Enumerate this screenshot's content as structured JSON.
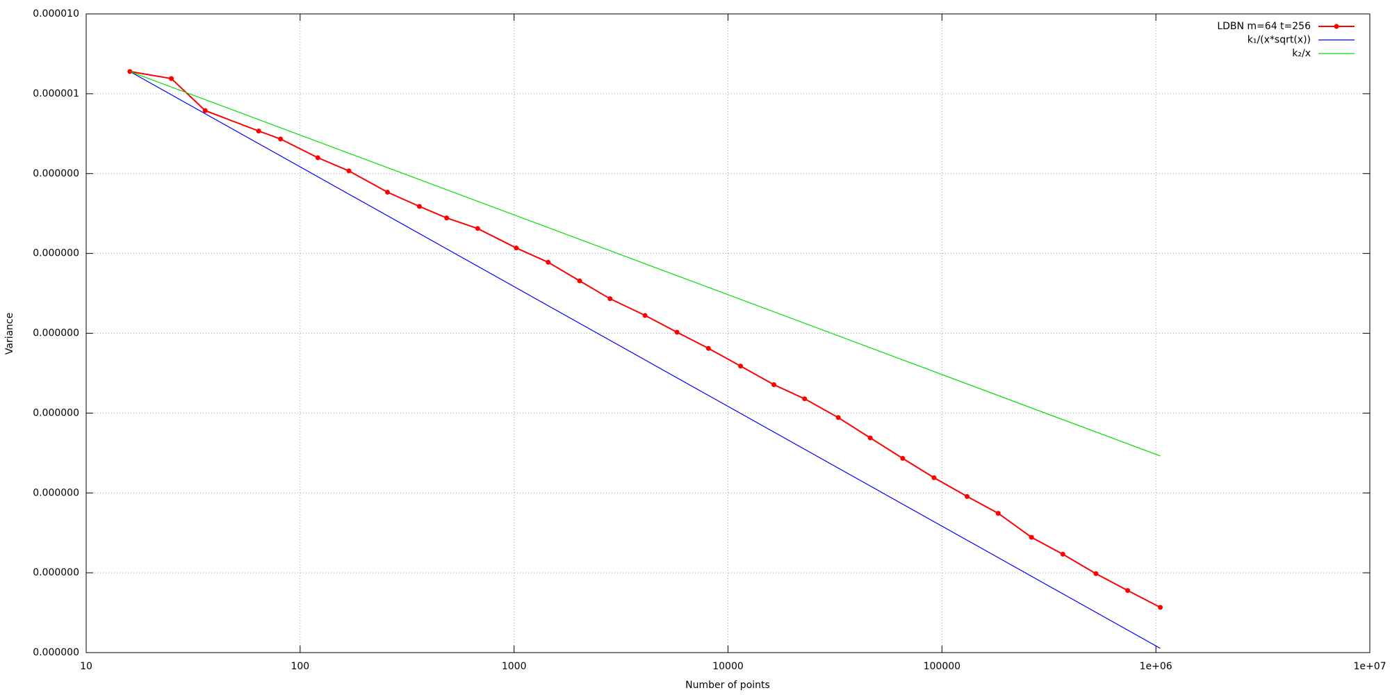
{
  "chart_data": {
    "type": "line",
    "xlabel": "Number of points",
    "ylabel": "Variance",
    "xscale": "log",
    "yscale": "log",
    "grid": true,
    "legend": "upper right",
    "xlim": [
      10,
      10000000
    ],
    "xticks": [
      10,
      100,
      1000,
      10000,
      100000,
      {
        "value": 1000000,
        "label": "1e+06"
      },
      {
        "value": 10000000,
        "label": "1e+07"
      }
    ],
    "ylim": [
      1e-13,
      1e-05
    ],
    "yticks": [
      {
        "value": 1e-05,
        "label": "0.000010"
      },
      {
        "value": 1e-06,
        "label": "0.000001"
      },
      {
        "value": 1e-07,
        "label": "0.000000"
      },
      {
        "value": 1e-08,
        "label": "0.000000"
      },
      {
        "value": 1e-09,
        "label": "0.000000"
      },
      {
        "value": 1e-10,
        "label": "0.000000"
      },
      {
        "value": 1e-11,
        "label": "0.000000"
      },
      {
        "value": 1e-12,
        "label": "0.000000"
      },
      {
        "value": 1e-13,
        "label": "0.000000"
      }
    ],
    "series": [
      {
        "name": "LDBN m=64 t=256",
        "color": "#ff0000",
        "markers": true,
        "x": [
          16,
          25,
          36,
          64,
          81,
          121,
          169,
          256,
          361,
          484,
          676,
          1024,
          1444,
          2025,
          2809,
          4096,
          5776,
          8100,
          11449,
          16384,
          22801,
          32761,
          46225,
          65536,
          91809,
          131044,
          183184,
          262144,
          367236,
          524176,
          737881,
          1048576
        ],
        "values": [
          1.9e-06,
          1.55e-06,
          6.15e-07,
          3.41e-07,
          2.71e-07,
          1.58e-07,
          1.08e-07,
          5.85e-08,
          3.88e-08,
          2.78e-08,
          2.05e-08,
          1.17e-08,
          7.74e-09,
          4.53e-09,
          2.71e-09,
          1.67e-09,
          1.03e-09,
          6.47e-10,
          3.88e-10,
          2.27e-10,
          1.51e-10,
          8.8e-11,
          4.89e-11,
          2.71e-11,
          1.55e-11,
          9.03e-12,
          5.55e-12,
          2.78e-12,
          1.71e-12,
          9.75e-13,
          6e-13,
          3.69e-13
        ]
      },
      {
        "name": "k₁/(x*sqrt(x))",
        "color": "#0000ff",
        "markers": false,
        "x": [
          16,
          1048576
        ],
        "values": [
          1.9e-06,
          1.13e-13
        ]
      },
      {
        "name": "k₂/x",
        "color": "#00dd00",
        "markers": false,
        "x": [
          16,
          1048576
        ],
        "values": [
          1.9e-06,
          2.9e-11
        ]
      }
    ]
  }
}
